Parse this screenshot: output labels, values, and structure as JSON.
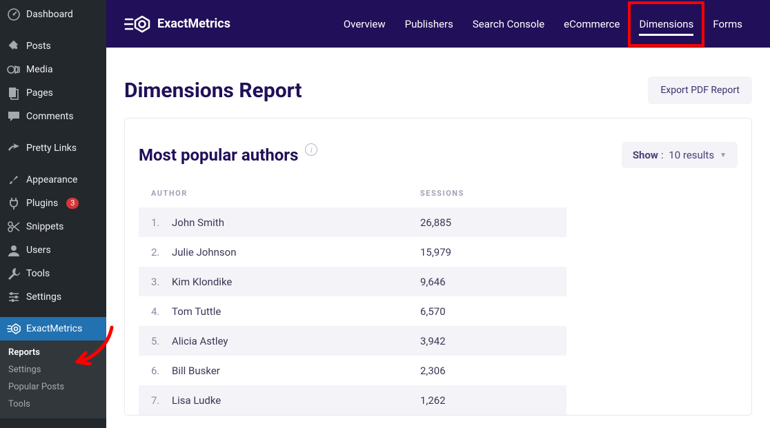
{
  "colors": {
    "sidebar_bg": "#23282d",
    "sidebar_sub_bg": "#32373c",
    "sidebar_active": "#2271b1",
    "badge_bg": "#d63638",
    "topnav_bg": "#210f59",
    "heading": "#210f59",
    "muted_btn_bg": "#f4f3f7",
    "row_stripe": "#f4f3f7",
    "annotation_red": "#ff0000"
  },
  "wp_sidebar": {
    "items": [
      {
        "label": "Dashboard",
        "icon": "dashboard"
      },
      {
        "label": "Posts",
        "icon": "pin"
      },
      {
        "label": "Media",
        "icon": "media"
      },
      {
        "label": "Pages",
        "icon": "pages"
      },
      {
        "label": "Comments",
        "icon": "comment"
      },
      {
        "label": "Pretty Links",
        "icon": "prettylinks"
      },
      {
        "label": "Appearance",
        "icon": "brush"
      },
      {
        "label": "Plugins",
        "icon": "plug",
        "badge": "3"
      },
      {
        "label": "Snippets",
        "icon": "snippets"
      },
      {
        "label": "Users",
        "icon": "user"
      },
      {
        "label": "Tools",
        "icon": "wrench"
      },
      {
        "label": "Settings",
        "icon": "sliders"
      },
      {
        "label": "ExactMetrics",
        "icon": "em",
        "active": true
      }
    ],
    "submenu": [
      {
        "label": "Reports",
        "current": true
      },
      {
        "label": "Settings"
      },
      {
        "label": "Popular Posts"
      },
      {
        "label": "Tools"
      }
    ]
  },
  "brand": "ExactMetrics",
  "nav": [
    {
      "label": "Overview"
    },
    {
      "label": "Publishers"
    },
    {
      "label": "Search Console"
    },
    {
      "label": "eCommerce"
    },
    {
      "label": "Dimensions",
      "active": true,
      "highlighted": true
    },
    {
      "label": "Forms"
    }
  ],
  "page_title": "Dimensions Report",
  "export_btn": "Export PDF Report",
  "section": {
    "title": "Most popular authors",
    "show_label": "Show",
    "show_value": "10 results"
  },
  "table": {
    "headers": {
      "author": "AUTHOR",
      "sessions": "SESSIONS"
    },
    "rows": [
      {
        "n": "1.",
        "name": "John Smith",
        "sessions": "26,885"
      },
      {
        "n": "2.",
        "name": "Julie Johnson",
        "sessions": "15,979"
      },
      {
        "n": "3.",
        "name": "Kim Klondike",
        "sessions": "9,646"
      },
      {
        "n": "4.",
        "name": "Tom Tuttle",
        "sessions": "6,570"
      },
      {
        "n": "5.",
        "name": "Alicia Astley",
        "sessions": "3,942"
      },
      {
        "n": "6.",
        "name": "Bill Busker",
        "sessions": "2,306"
      },
      {
        "n": "7.",
        "name": "Lisa Ludke",
        "sessions": "1,262"
      }
    ]
  }
}
